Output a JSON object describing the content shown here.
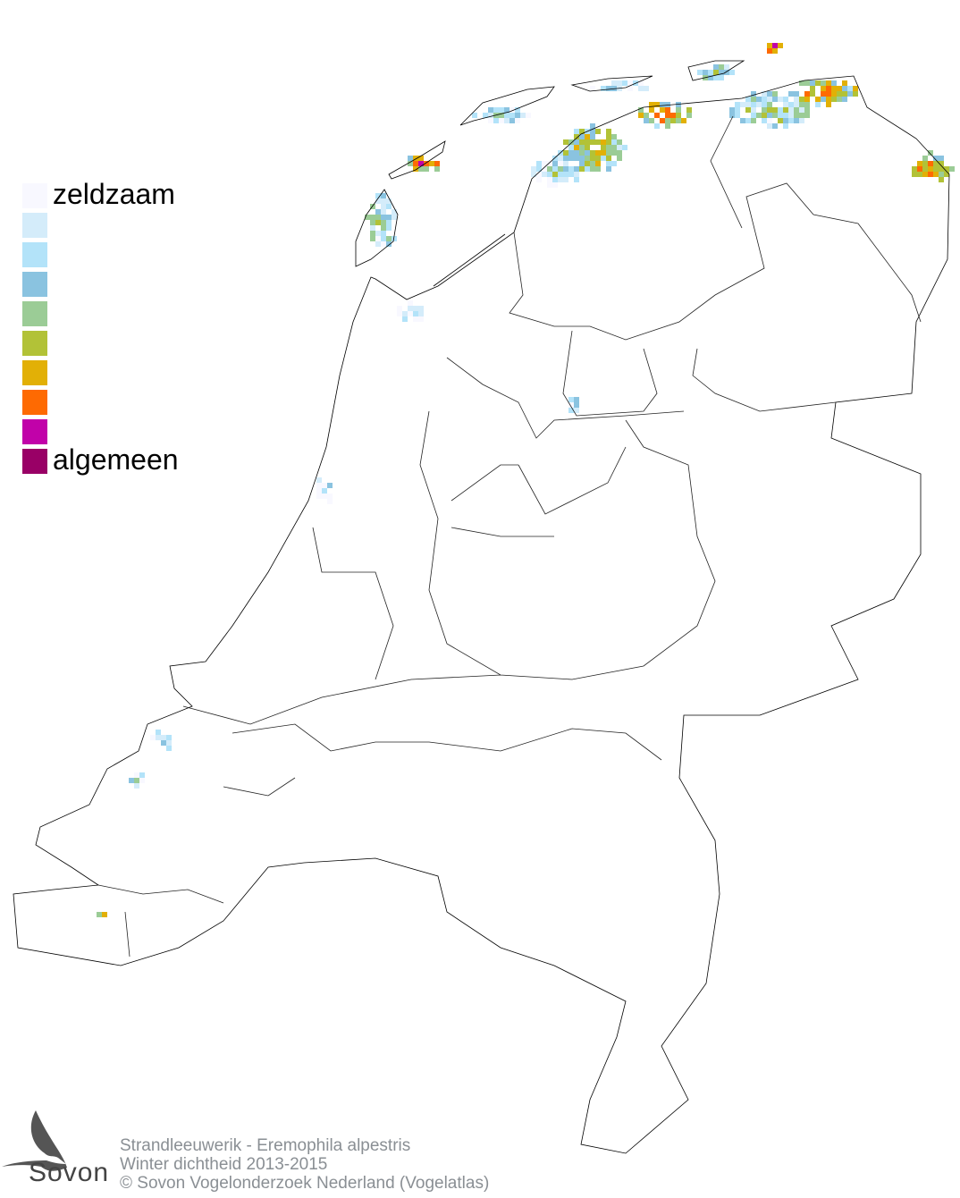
{
  "legend": {
    "levels": [
      {
        "label": "zeldzaam",
        "color": "#f8f8ff"
      },
      {
        "label": "",
        "color": "#d4ecfa"
      },
      {
        "label": "",
        "color": "#b3e3f9"
      },
      {
        "label": "",
        "color": "#8ac3e0"
      },
      {
        "label": "",
        "color": "#9bcc96"
      },
      {
        "label": "",
        "color": "#b2c237"
      },
      {
        "label": "",
        "color": "#e2b006"
      },
      {
        "label": "",
        "color": "#fe6a02"
      },
      {
        "label": "",
        "color": "#c102a9"
      },
      {
        "label": "algemeen",
        "color": "#990066"
      }
    ]
  },
  "caption": {
    "species": "Strandleeuwerik - Eremophila alpestris",
    "subtitle": "Winter dichtheid 2013-2015",
    "copyright": "© Sovon Vogelonderzoek Nederland (Vogelatlas)"
  },
  "logo": {
    "text": "Sovon"
  }
}
